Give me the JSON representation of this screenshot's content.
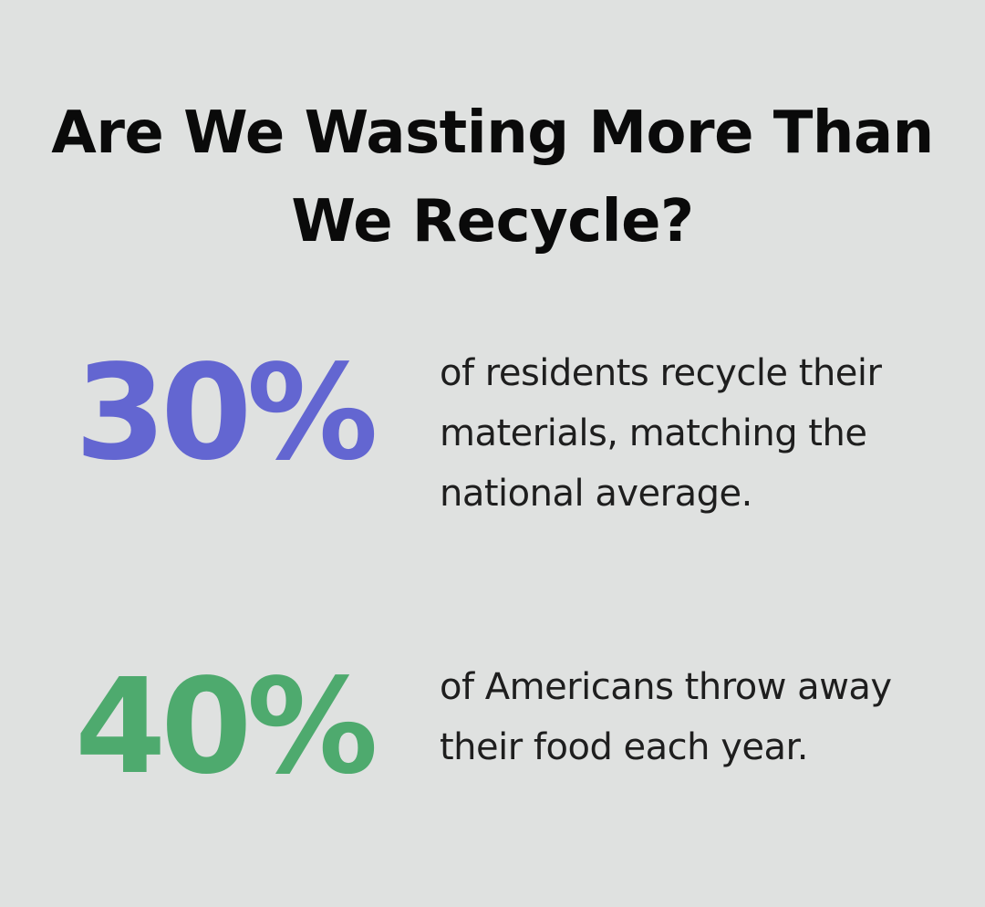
{
  "title": "Are We Wasting More Than We Recycle?",
  "stats": [
    {
      "value": "30%",
      "text": "of residents recycle their materials, matching the national average.",
      "color": "#6366d1"
    },
    {
      "value": "40%",
      "text": "of Americans throw away their food each year.",
      "color": "#4eaa6e"
    }
  ]
}
